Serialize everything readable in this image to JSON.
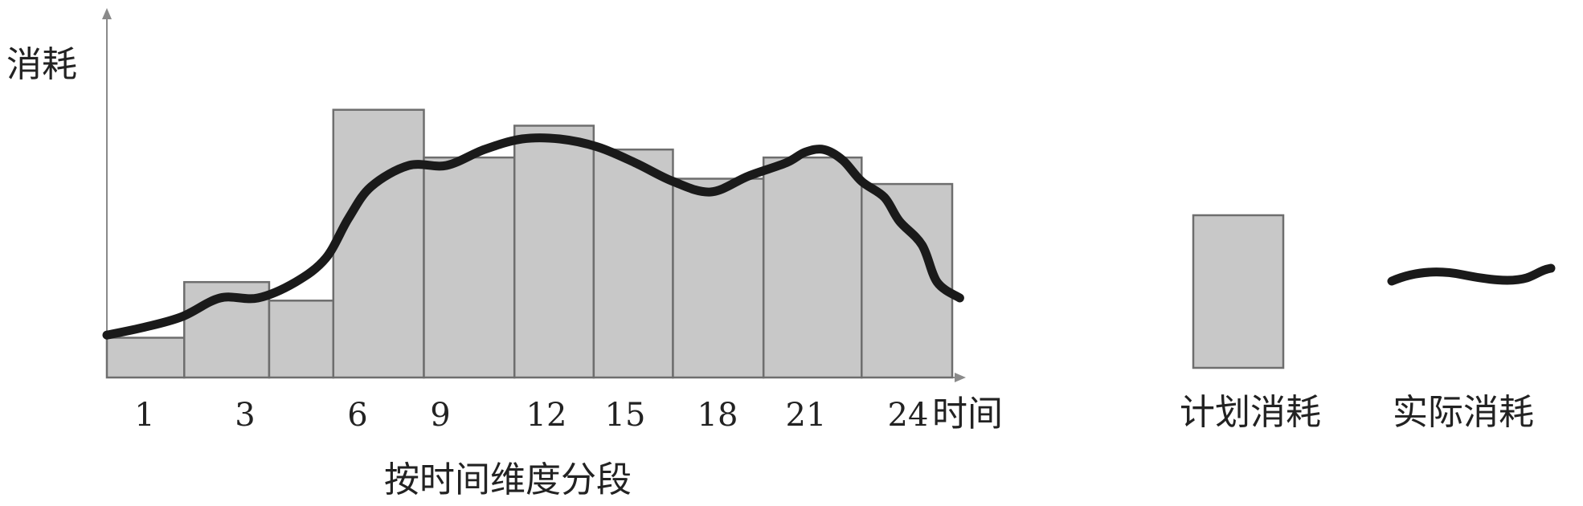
{
  "chart_data": {
    "type": "bar",
    "title": "",
    "ylabel": "消耗",
    "xlabel_end": "时间",
    "xlabel": "按时间维度分段",
    "x_ticks": [
      "1",
      "3",
      "6",
      "9",
      "12",
      "15",
      "18",
      "21",
      "24"
    ],
    "ylim": [
      0,
      100
    ],
    "bar_color": "#c8c8c8",
    "bar_edge": "#6e6e6e",
    "line_color": "#1a1a1a",
    "series": [
      {
        "name": "计划消耗",
        "kind": "bar",
        "bars": [
          {
            "from": 0.0,
            "to": 2.05,
            "value": 15
          },
          {
            "from": 2.05,
            "to": 4.3,
            "value": 36
          },
          {
            "from": 4.3,
            "to": 6.0,
            "value": 29
          },
          {
            "from": 6.0,
            "to": 8.4,
            "value": 101
          },
          {
            "from": 8.4,
            "to": 10.8,
            "value": 83
          },
          {
            "from": 10.8,
            "to": 12.9,
            "value": 95
          },
          {
            "from": 12.9,
            "to": 15.0,
            "value": 86
          },
          {
            "from": 15.0,
            "to": 17.4,
            "value": 75
          },
          {
            "from": 17.4,
            "to": 20.0,
            "value": 83
          },
          {
            "from": 20.0,
            "to": 22.4,
            "value": 73
          }
        ]
      },
      {
        "name": "实际消耗",
        "kind": "line",
        "x": [
          0,
          1,
          2,
          3,
          4,
          5,
          5.8,
          6.4,
          7,
          8,
          9,
          10,
          11,
          12,
          13,
          14,
          15,
          16,
          17,
          18,
          18.5,
          19,
          19.5,
          20,
          20.6,
          21,
          21.6,
          22,
          22.6
        ],
        "y": [
          16,
          19,
          23,
          30,
          30,
          36,
          45,
          60,
          72,
          80,
          80,
          86,
          90,
          90,
          87,
          81,
          74,
          70,
          76,
          81,
          85,
          86,
          82,
          74,
          68,
          59,
          50,
          36,
          30
        ]
      }
    ],
    "legend": [
      {
        "label": "计划消耗",
        "kind": "bar"
      },
      {
        "label": "实际消耗",
        "kind": "line"
      }
    ]
  }
}
